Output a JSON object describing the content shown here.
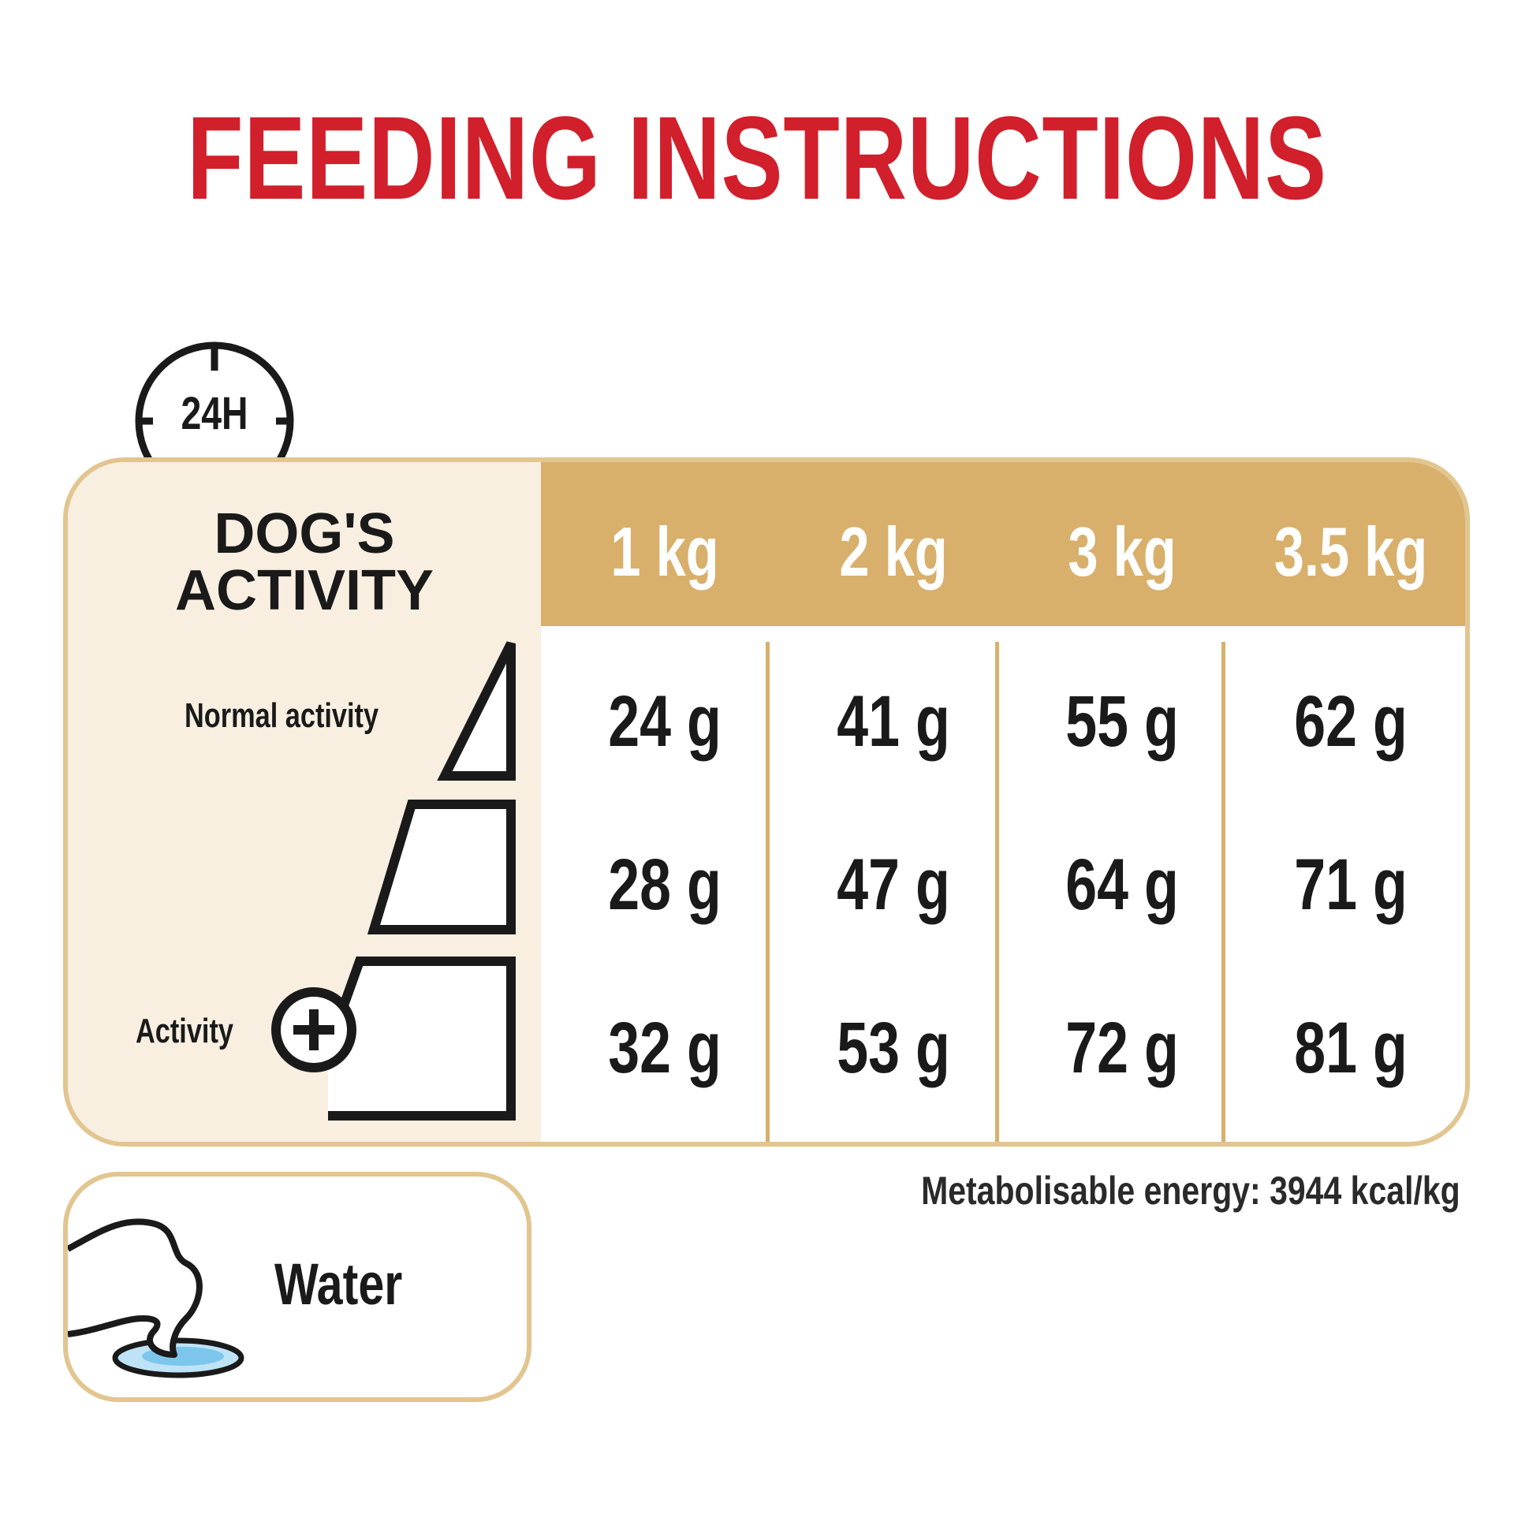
{
  "title": "FEEDING INSTRUCTIONS",
  "clock_icon": {
    "name": "24h-clock-icon",
    "label": "24H"
  },
  "table": {
    "activity_header": "DOG'S\nACTIVITY",
    "weight_columns": [
      "1 kg",
      "2 kg",
      "3 kg",
      "3.5 kg"
    ],
    "rows": [
      {
        "label": "Normal activity",
        "values": [
          "24 g",
          "41 g",
          "55 g",
          "62 g"
        ]
      },
      {
        "label": "",
        "values": [
          "28 g",
          "47 g",
          "64 g",
          "71 g"
        ]
      },
      {
        "label": "Activity",
        "values": [
          "32 g",
          "53 g",
          "72 g",
          "81 g"
        ]
      }
    ],
    "activity_plus_icon": "plus-circle-icon"
  },
  "energy_note": "Metabolisable energy: 3944 kcal/kg",
  "water": {
    "label": "Water",
    "icon": "dog-drinking-water-icon"
  },
  "colors": {
    "title_red": "#d11f2b",
    "gold": "#d8b06b",
    "gold_border": "#e2c58f",
    "panel_cream": "#f8efe1",
    "water_blue": "#7cc6ec"
  }
}
